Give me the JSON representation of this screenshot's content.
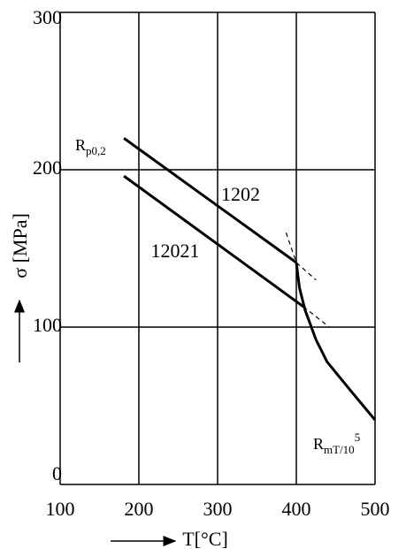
{
  "chart_data": {
    "type": "line",
    "x_label": "T[°C]",
    "y_label": "σ [MPa]",
    "xlim": [
      100,
      500
    ],
    "ylim": [
      0,
      300
    ],
    "xticks": [
      100,
      200,
      300,
      400,
      500
    ],
    "yticks": [
      0,
      100,
      200,
      300
    ],
    "grid": true,
    "series": [
      {
        "name": "1202",
        "color": "#000000",
        "x": [
          181,
          400
        ],
        "values": [
          220,
          141
        ]
      },
      {
        "name": "12021",
        "color": "#000000",
        "x": [
          181,
          409
        ],
        "values": [
          196,
          113
        ]
      },
      {
        "color": "#000000",
        "x": [
          400,
          404,
          411,
          425,
          439,
          470,
          500
        ],
        "values": [
          141,
          125,
          111,
          92,
          78,
          59,
          41
        ]
      },
      {
        "color": "#000000",
        "dashed": true,
        "x": [
          387,
          400,
          425
        ],
        "values": [
          160,
          141,
          130
        ]
      },
      {
        "color": "#000000",
        "dashed": true,
        "x": [
          409,
          442
        ],
        "values": [
          113,
          100
        ]
      }
    ],
    "annotations": [
      {
        "text": "R",
        "sub": "p0,2"
      },
      {
        "text": "R",
        "sub": "mT/10",
        "sup": "5"
      }
    ]
  }
}
